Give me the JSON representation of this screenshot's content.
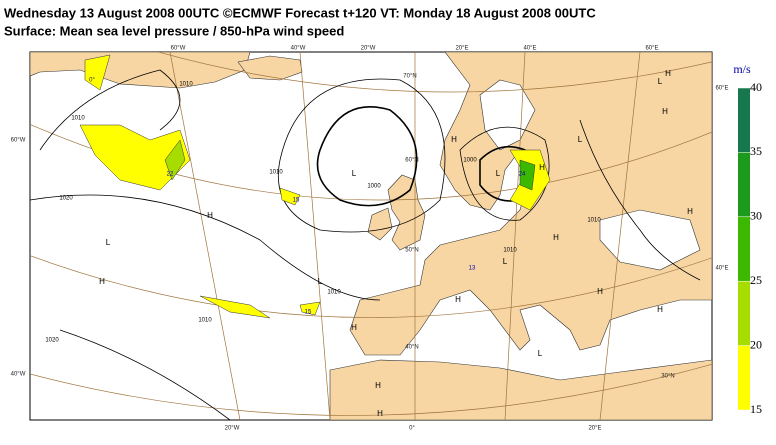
{
  "header": {
    "title": "Wednesday 13 August 2008 00UTC ©ECMWF Forecast t+120 VT: Monday 18 August 2008 00UTC",
    "subtitle": "Surface: Mean sea level pressure / 850-hPa wind speed"
  },
  "legend": {
    "unit": "m/s",
    "levels": [
      15,
      20,
      25,
      30,
      35,
      40
    ],
    "colors": [
      "#ffff00",
      "#a6dc00",
      "#3cb800",
      "#1c9a1c",
      "#16784c"
    ]
  },
  "graticule": {
    "labels": [
      "60°W",
      "40°W",
      "20°W",
      "20°E",
      "40°E",
      "60°E",
      "70°N",
      "60°N",
      "50°N",
      "40°N",
      "30°N",
      "60°W",
      "40°W",
      "60°E",
      "40°E",
      "20°W",
      "0°",
      "20°E",
      "0°"
    ]
  },
  "pressure": {
    "centers": [
      "H",
      "L",
      "L",
      "H",
      "L",
      "H",
      "L",
      "H",
      "L",
      "H",
      "H",
      "L",
      "H",
      "H",
      "L",
      "H",
      "H",
      "L",
      "H",
      "H",
      "H",
      "H"
    ],
    "isobars": [
      "1010",
      "1020",
      "1000",
      "1010",
      "1010",
      "1000",
      "1020",
      "1010",
      "1010",
      "1010",
      "1010"
    ]
  },
  "wind": {
    "maxima": [
      "22",
      "15",
      "13",
      "24",
      "15"
    ]
  }
}
